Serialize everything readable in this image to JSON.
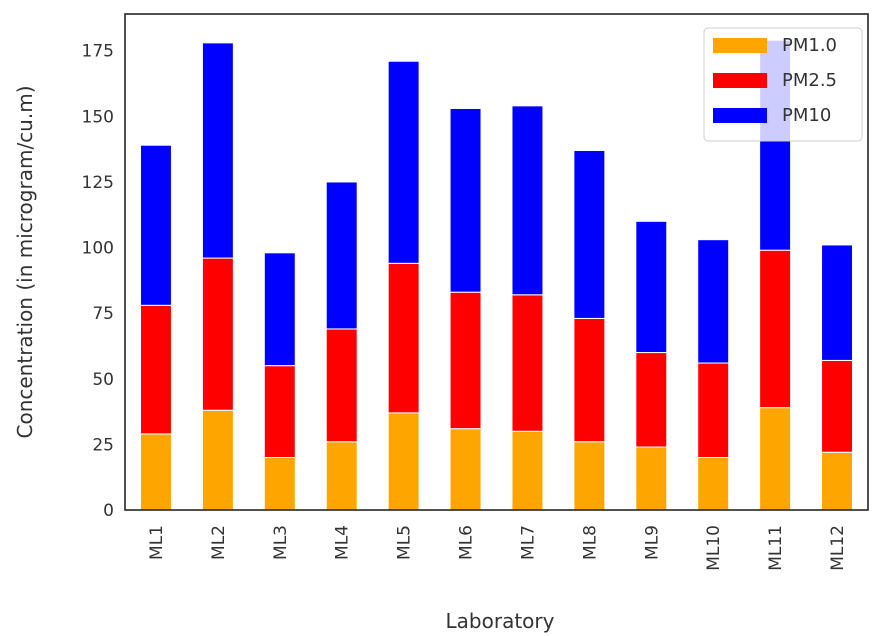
{
  "chart_data": {
    "type": "bar",
    "stacked": true,
    "title": "",
    "xlabel": "Laboratory",
    "ylabel": "Concentration (in microgram/cu.m)",
    "categories": [
      "ML1",
      "ML2",
      "ML3",
      "ML4",
      "ML5",
      "ML6",
      "ML7",
      "ML8",
      "ML9",
      "ML10",
      "ML11",
      "ML12"
    ],
    "series": [
      {
        "name": "PM1.0",
        "color": "#ffa500",
        "values": [
          29,
          38,
          20,
          26,
          37,
          31,
          30,
          26,
          24,
          20,
          39,
          22
        ]
      },
      {
        "name": "PM2.5",
        "color": "#ff0000",
        "values": [
          49,
          58,
          35,
          43,
          57,
          52,
          52,
          47,
          36,
          36,
          60,
          35
        ]
      },
      {
        "name": "PM10",
        "color": "#0000ff",
        "values": [
          61,
          82,
          43,
          56,
          77,
          70,
          72,
          64,
          50,
          47,
          80,
          44
        ]
      }
    ],
    "ylim": [
      0,
      189
    ],
    "yticks": [
      0,
      25,
      50,
      75,
      100,
      125,
      150,
      175
    ],
    "grid": false,
    "legend": "top-right"
  }
}
